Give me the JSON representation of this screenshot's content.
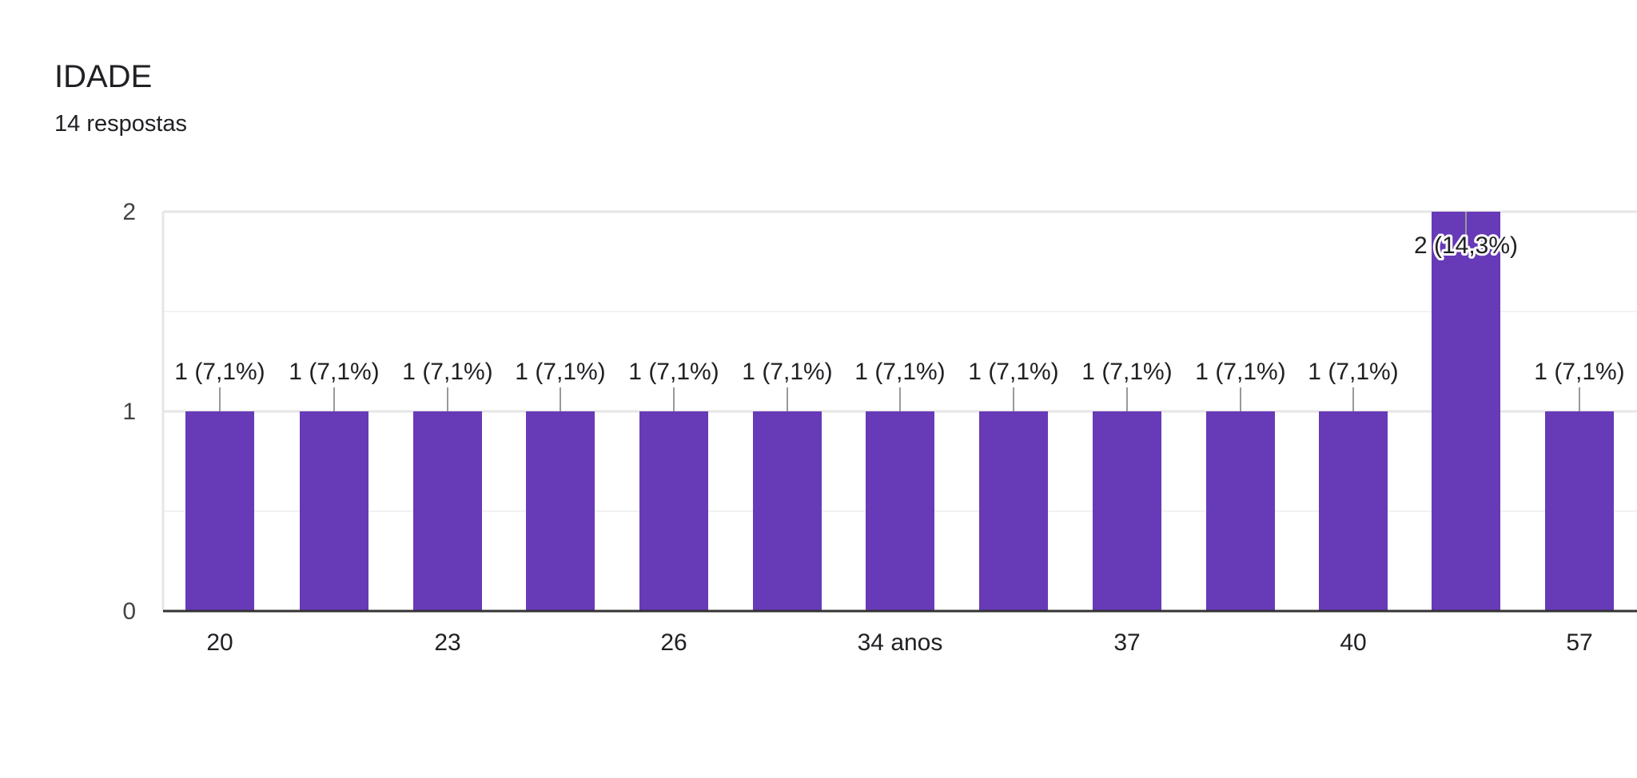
{
  "header": {
    "title": "IDADE",
    "subtitle": "14 respostas"
  },
  "colors": {
    "bar": "#673ab7",
    "axis": "#333333",
    "gridline": "#ebebeb",
    "leader": "#999999"
  },
  "chart_data": {
    "type": "bar",
    "title": "IDADE",
    "subtitle": "14 respostas",
    "xlabel": "",
    "ylabel": "",
    "ylim": [
      0,
      2
    ],
    "grid": true,
    "legend": "none",
    "y_ticks": [
      "0",
      "1",
      "2"
    ],
    "x_tick_labels": [
      "20",
      "23",
      "26",
      "34 anos",
      "37",
      "40",
      "57"
    ],
    "categories": [
      "20",
      "",
      "23",
      "",
      "26",
      "",
      "34 anos",
      "",
      "37",
      "",
      "40",
      "",
      "57"
    ],
    "values": [
      1,
      1,
      1,
      1,
      1,
      1,
      1,
      1,
      1,
      1,
      1,
      2,
      1
    ],
    "data_labels": [
      "1 (7,1%)",
      "1 (7,1%)",
      "1 (7,1%)",
      "1 (7,1%)",
      "1 (7,1%)",
      "1 (7,1%)",
      "1 (7,1%)",
      "1 (7,1%)",
      "1 (7,1%)",
      "1 (7,1%)",
      "1 (7,1%)",
      "2 (14,3%)",
      "1 (7,1%)"
    ]
  }
}
